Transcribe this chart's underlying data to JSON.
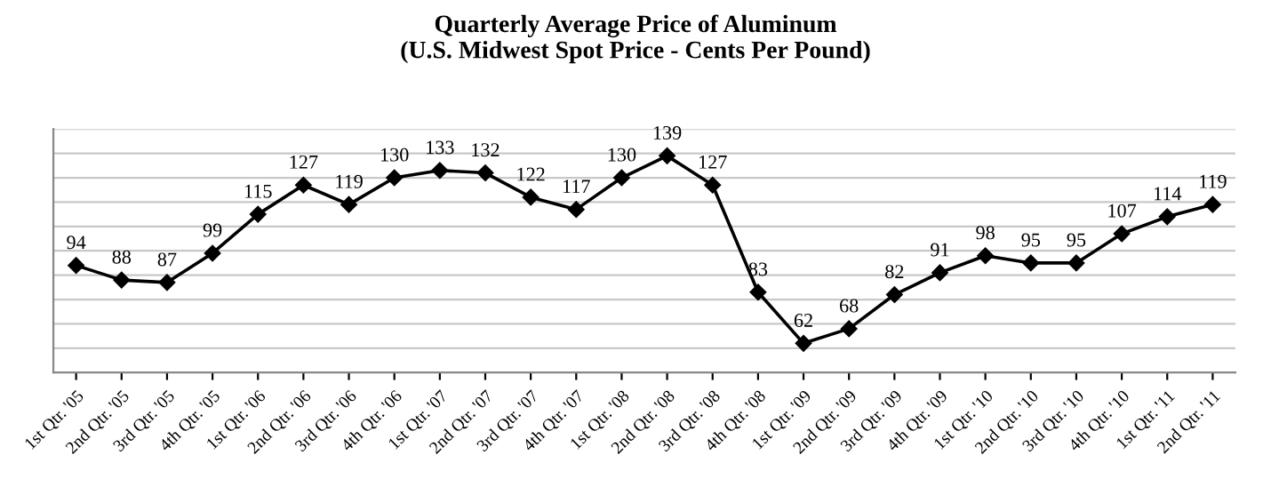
{
  "chart_data": {
    "type": "line",
    "title": "Quarterly Average Price of Aluminum\n(U.S. Midwest Spot Price - Cents Per Pound)",
    "categories": [
      "1st Qtr. '05",
      "2nd Qtr. '05",
      "3rd Qtr. '05",
      "4th Qtr. '05",
      "1st Qtr. '06",
      "2nd Qtr. '06",
      "3rd Qtr. '06",
      "4th Qtr. '06",
      "1st Qtr. '07",
      "2nd Qtr. '07",
      "3rd Qtr. '07",
      "4th Qtr. '07",
      "1st Qtr. '08",
      "2nd Qtr. '08",
      "3rd Qtr. '08",
      "4th Qtr. '08",
      "1st Qtr. '09",
      "2nd Qtr. '09",
      "3rd Qtr. '09",
      "4th Qtr. '09",
      "1st Qtr. '10",
      "2nd Qtr. '10",
      "3rd Qtr. '10",
      "4th Qtr. '10",
      "1st Qtr. '11",
      "2nd Qtr. '11"
    ],
    "series": [
      {
        "color": "#000000",
        "values": [
          94,
          88,
          87,
          99,
          115,
          127,
          119,
          130,
          133,
          132,
          122,
          117,
          130,
          139,
          127,
          83,
          62,
          68,
          82,
          91,
          98,
          95,
          95,
          107,
          114,
          119
        ]
      }
    ],
    "ylim": [
      50,
      150
    ],
    "yticks": [
      {
        "value": 50,
        "label": null
      },
      {
        "value": 60,
        "label": null
      },
      {
        "value": 70,
        "label": null
      },
      {
        "value": 80,
        "label": null
      },
      {
        "value": 90,
        "label": null
      },
      {
        "value": 100,
        "label": null
      },
      {
        "value": 110,
        "label": null
      },
      {
        "value": 120,
        "label": null
      },
      {
        "value": 130,
        "label": null
      },
      {
        "value": 140,
        "label": null
      },
      {
        "value": 150,
        "label": null
      }
    ],
    "grid": "y",
    "tick_labels": "x",
    "marker": "diamond",
    "line_style": "solid",
    "data_labels": true
  }
}
